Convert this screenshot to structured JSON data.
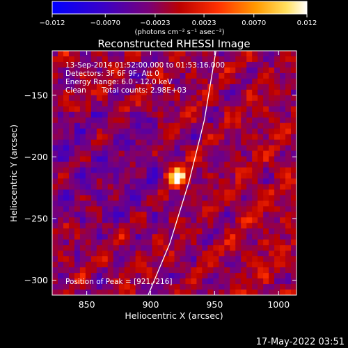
{
  "chart_data": {
    "type": "heatmap",
    "title": "Reconstructed RHESSI Image",
    "xlabel": "Heliocentric X (arcsec)",
    "ylabel": "Heliocentric Y (arcsec)",
    "xlim": [
      823,
      1014
    ],
    "ylim": [
      -312,
      -114
    ],
    "x_ticks": [
      850,
      900,
      950,
      1000
    ],
    "y_ticks": [
      -150,
      -200,
      -250,
      -300
    ],
    "x_tick_labels": [
      "850",
      "900",
      "950",
      "1000"
    ],
    "y_tick_labels": [
      "−150",
      "−200",
      "−250",
      "−300"
    ],
    "colorbar": {
      "min": -0.012,
      "max": 0.012,
      "tick_values": [
        -0.012,
        -0.007,
        -0.0023,
        0.0023,
        0.007,
        0.012
      ],
      "tick_labels": [
        "−0.012",
        "−0.0070",
        "−0.0023",
        "0.0023",
        "0.0070",
        "0.012"
      ],
      "unit_label": "(photons cm⁻² s⁻¹ asec⁻²)"
    },
    "annotations": {
      "line1": "13-Sep-2014 01:52:00.000 to 01:53:16.000",
      "line2": "Detectors: 3F 6F 9F, Att 0",
      "line3": "Energy Range: 6.0 - 12.0 keV",
      "line4_a": "Clean",
      "line4_b": "Total counts: 2.98E+03",
      "peak": "Position of Peak = [921,-216]"
    },
    "peak": {
      "x": 921,
      "y": -216
    },
    "limb_curve": [
      [
        898,
        -312
      ],
      [
        915,
        -270
      ],
      [
        930,
        -220
      ],
      [
        942,
        -170
      ],
      [
        951,
        -114
      ]
    ],
    "timestamp": "17-May-2022 03:51"
  }
}
